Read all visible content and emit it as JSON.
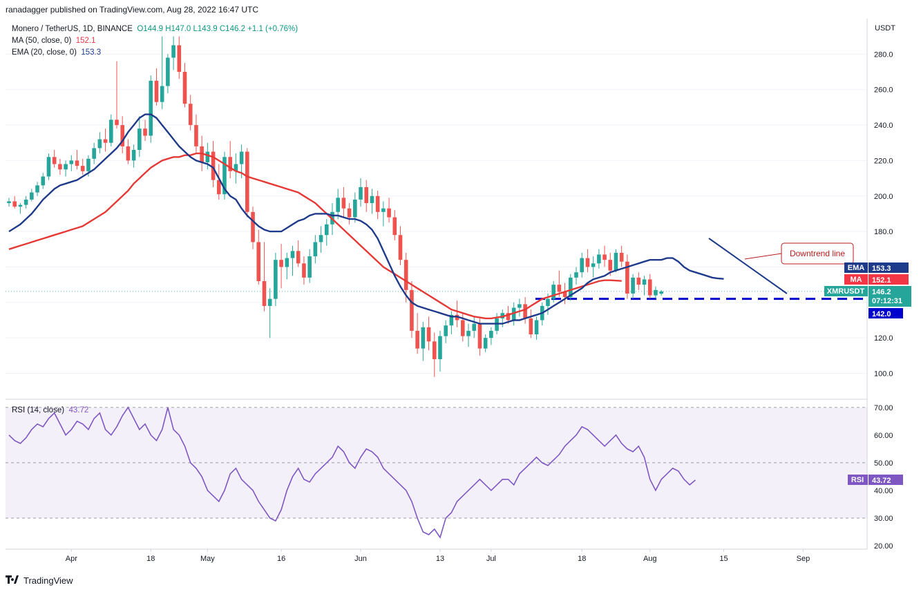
{
  "header": {
    "publisher": "ranadagger published on TradingView.com, Aug 28, 2022 16:47 UTC"
  },
  "legend": {
    "symbol": "Monero / TetherUS, 1D, BINANCE",
    "ohlc": "O144.9  H147.0  L143.9  C146.2  +1.1 (+0.76%)",
    "ma_label": "MA (50, close, 0)",
    "ma_value": "152.1",
    "ema_label": "EMA (20, close, 0)",
    "ema_value": "153.3"
  },
  "rsi_legend": {
    "label": "RSI (14, close)",
    "value": "43.72"
  },
  "price_axis": {
    "unit": "USDT"
  },
  "annotation": {
    "downtrend": "Downtrend line"
  },
  "tags": {
    "ema": {
      "name": "EMA",
      "value": "153.3",
      "color": "#1e3a8a"
    },
    "ma": {
      "name": "MA",
      "value": "152.1",
      "color": "#f23645"
    },
    "symbol": {
      "name": "XMRUSDT",
      "value": "146.2",
      "countdown": "07:12:31",
      "color": "#26a69a"
    },
    "support": {
      "value": "142.0",
      "color": "#0000cc"
    },
    "rsi": {
      "name": "RSI",
      "value": "43.72",
      "color": "#7e57c2"
    }
  },
  "footer": {
    "brand": "TradingView",
    "logo": "tradingview-logo"
  },
  "colors": {
    "up": "#26a69a",
    "down": "#ef5350",
    "ema": "#1e3a8a",
    "ma": "#e53935",
    "rsi": "#7e57c2"
  },
  "chart_data": [
    {
      "type": "candlestick",
      "title": "Monero / TetherUS, 1D, BINANCE",
      "x_ticks": [
        "Apr",
        "18",
        "May",
        "16",
        "Jun",
        "13",
        "Jul",
        "18",
        "Aug",
        "15",
        "Sep"
      ],
      "y_ticks": [
        100.0,
        120.0,
        140.0,
        160.0,
        180.0,
        200.0,
        220.0,
        240.0,
        260.0,
        280.0
      ],
      "ylim": [
        93,
        295
      ],
      "levels": {
        "support": 142.0,
        "last": 146.2
      },
      "ema_20": [
        180,
        182,
        184,
        187,
        190,
        194,
        198,
        201,
        204,
        206,
        207,
        208,
        209,
        211,
        213,
        215,
        218,
        221,
        224,
        227,
        231,
        236,
        240,
        244,
        246,
        246,
        244,
        240,
        236,
        232,
        228,
        225,
        222,
        220,
        219,
        218,
        216,
        210,
        204,
        200,
        198,
        193,
        189,
        186,
        183,
        181,
        180,
        180,
        180,
        182,
        184,
        186,
        187,
        189,
        190,
        190,
        190,
        189,
        189,
        188,
        187,
        187,
        186,
        184,
        181,
        176,
        169,
        162,
        155,
        149,
        144,
        140,
        138,
        137,
        136,
        135,
        134,
        133,
        132,
        132,
        131,
        130,
        129,
        128,
        128,
        128,
        128,
        128,
        129,
        130,
        130,
        131,
        132,
        133,
        134,
        136,
        138,
        140,
        142,
        144,
        146,
        148,
        151,
        153,
        154,
        155,
        157,
        158,
        159,
        160,
        161,
        162,
        163,
        164,
        164,
        164,
        165,
        165,
        163,
        160,
        158,
        157,
        156,
        155,
        154,
        153.5,
        153.3
      ],
      "ma_50": [
        170,
        171,
        172,
        173,
        174,
        175,
        176,
        177,
        178,
        179,
        180,
        181,
        182,
        183,
        185,
        187,
        189,
        191,
        194,
        197,
        200,
        203,
        207,
        210,
        213,
        216,
        218,
        220,
        221,
        222,
        222,
        223,
        223,
        224,
        224,
        223,
        222,
        220,
        218,
        216,
        214,
        213,
        211,
        210,
        209,
        208,
        207,
        206,
        205,
        204,
        203,
        202,
        200,
        198,
        196,
        193,
        190,
        187,
        184,
        181,
        178,
        175,
        172,
        169,
        166,
        163,
        160,
        158,
        156,
        154,
        152,
        150,
        148,
        146,
        144,
        142,
        140,
        138,
        136,
        135,
        134,
        133,
        132,
        131.5,
        131,
        131,
        131.5,
        132,
        133,
        134,
        135,
        136,
        138,
        140,
        142,
        143,
        144,
        145,
        146,
        147,
        148,
        149,
        150,
        151,
        152,
        152.5,
        152.5,
        152.3,
        152.1
      ],
      "candles": [
        [
          196,
          199,
          194,
          197
        ],
        [
          197,
          200,
          193,
          194
        ],
        [
          194,
          196,
          190,
          195
        ],
        [
          195,
          200,
          193,
          198
        ],
        [
          198,
          204,
          197,
          202
        ],
        [
          202,
          208,
          200,
          206
        ],
        [
          206,
          213,
          204,
          211
        ],
        [
          211,
          224,
          209,
          222
        ],
        [
          222,
          226,
          216,
          218
        ],
        [
          218,
          221,
          212,
          215
        ],
        [
          215,
          220,
          211,
          218
        ],
        [
          218,
          223,
          214,
          220
        ],
        [
          220,
          226,
          215,
          217
        ],
        [
          217,
          221,
          212,
          214
        ],
        [
          214,
          223,
          211,
          221
        ],
        [
          221,
          230,
          218,
          227
        ],
        [
          227,
          236,
          224,
          232
        ],
        [
          232,
          238,
          225,
          230
        ],
        [
          230,
          246,
          228,
          243
        ],
        [
          243,
          276,
          238,
          240
        ],
        [
          240,
          245,
          224,
          228
        ],
        [
          228,
          232,
          218,
          220
        ],
        [
          220,
          229,
          216,
          226
        ],
        [
          226,
          245,
          222,
          238
        ],
        [
          238,
          243,
          231,
          234
        ],
        [
          234,
          268,
          230,
          265
        ],
        [
          265,
          272,
          251,
          253
        ],
        [
          253,
          290,
          249,
          262
        ],
        [
          262,
          280,
          258,
          278
        ],
        [
          278,
          290,
          271,
          285
        ],
        [
          285,
          290,
          266,
          270
        ],
        [
          270,
          275,
          250,
          252
        ],
        [
          252,
          257,
          237,
          240
        ],
        [
          240,
          246,
          224,
          228
        ],
        [
          228,
          234,
          214,
          219
        ],
        [
          219,
          230,
          215,
          225
        ],
        [
          225,
          231,
          205,
          209
        ],
        [
          209,
          218,
          198,
          201
        ],
        [
          201,
          225,
          198,
          222
        ],
        [
          222,
          231,
          210,
          214
        ],
        [
          214,
          224,
          207,
          218
        ],
        [
          218,
          229,
          210,
          225
        ],
        [
          225,
          227,
          188,
          191
        ],
        [
          191,
          194,
          170,
          174
        ],
        [
          174,
          181,
          150,
          152
        ],
        [
          152,
          174,
          135,
          138
        ],
        [
          138,
          148,
          120,
          142
        ],
        [
          142,
          168,
          138,
          164
        ],
        [
          164,
          173,
          148,
          160
        ],
        [
          160,
          168,
          153,
          165
        ],
        [
          165,
          172,
          155,
          169
        ],
        [
          169,
          175,
          160,
          162
        ],
        [
          162,
          166,
          150,
          154
        ],
        [
          154,
          170,
          151,
          166
        ],
        [
          166,
          178,
          162,
          174
        ],
        [
          174,
          183,
          168,
          178
        ],
        [
          178,
          187,
          172,
          184
        ],
        [
          184,
          196,
          178,
          191
        ],
        [
          191,
          204,
          187,
          199
        ],
        [
          199,
          205,
          188,
          193
        ],
        [
          193,
          196,
          184,
          188
        ],
        [
          188,
          202,
          185,
          198
        ],
        [
          198,
          210,
          194,
          205
        ],
        [
          205,
          209,
          191,
          196
        ],
        [
          196,
          204,
          190,
          200
        ],
        [
          200,
          203,
          187,
          191
        ],
        [
          191,
          197,
          183,
          193
        ],
        [
          193,
          199,
          185,
          188
        ],
        [
          188,
          192,
          175,
          178
        ],
        [
          178,
          183,
          161,
          164
        ],
        [
          164,
          168,
          140,
          147
        ],
        [
          147,
          152,
          120,
          124
        ],
        [
          124,
          134,
          111,
          114
        ],
        [
          114,
          129,
          107,
          126
        ],
        [
          126,
          132,
          113,
          118
        ],
        [
          118,
          123,
          98,
          108
        ],
        [
          108,
          124,
          101,
          121
        ],
        [
          121,
          130,
          117,
          127
        ],
        [
          127,
          135,
          122,
          133
        ],
        [
          133,
          141,
          126,
          130
        ],
        [
          130,
          134,
          118,
          121
        ],
        [
          121,
          128,
          115,
          124
        ],
        [
          124,
          132,
          120,
          128
        ],
        [
          128,
          131,
          110,
          114
        ],
        [
          114,
          122,
          112,
          120
        ],
        [
          120,
          126,
          116,
          124
        ],
        [
          124,
          134,
          122,
          131
        ],
        [
          131,
          136,
          126,
          134
        ],
        [
          134,
          138,
          128,
          130
        ],
        [
          130,
          140,
          127,
          137
        ],
        [
          137,
          142,
          132,
          139
        ],
        [
          139,
          143,
          128,
          131
        ],
        [
          131,
          136,
          120,
          122
        ],
        [
          122,
          132,
          119,
          130
        ],
        [
          130,
          140,
          127,
          138
        ],
        [
          138,
          145,
          133,
          142
        ],
        [
          142,
          152,
          140,
          150
        ],
        [
          150,
          158,
          143,
          146
        ],
        [
          146,
          151,
          139,
          143
        ],
        [
          143,
          156,
          141,
          154
        ],
        [
          154,
          160,
          150,
          157
        ],
        [
          157,
          168,
          154,
          165
        ],
        [
          165,
          170,
          157,
          160
        ],
        [
          160,
          166,
          154,
          162
        ],
        [
          162,
          170,
          159,
          167
        ],
        [
          167,
          172,
          160,
          164
        ],
        [
          164,
          168,
          155,
          158
        ],
        [
          158,
          170,
          157,
          168
        ],
        [
          168,
          172,
          160,
          163
        ],
        [
          163,
          167,
          142,
          145
        ],
        [
          145,
          156,
          142,
          154
        ],
        [
          154,
          157,
          147,
          150
        ],
        [
          150,
          155,
          144,
          153
        ],
        [
          153,
          156,
          142,
          144
        ],
        [
          144,
          149,
          142,
          147
        ],
        [
          144.9,
          147.0,
          143.9,
          146.2
        ]
      ]
    },
    {
      "type": "line",
      "title": "RSI (14, close)",
      "y_ticks": [
        20.0,
        30.0,
        40.0,
        50.0,
        60.0,
        70.0
      ],
      "ylim": [
        18,
        72
      ],
      "bands": {
        "upper": 70,
        "middle": 50,
        "lower": 30
      },
      "values": [
        60,
        58,
        57,
        59,
        62,
        64,
        63,
        66,
        68,
        64,
        60,
        62,
        65,
        64,
        62,
        66,
        68,
        62,
        60,
        63,
        67,
        70,
        66,
        62,
        64,
        60,
        58,
        62,
        70,
        62,
        60,
        56,
        50,
        48,
        45,
        40,
        38,
        36,
        40,
        46,
        48,
        44,
        42,
        40,
        36,
        33,
        30,
        29,
        33,
        40,
        45,
        48,
        44,
        43,
        46,
        48,
        50,
        52,
        56,
        54,
        50,
        48,
        52,
        55,
        54,
        52,
        48,
        46,
        44,
        42,
        40,
        36,
        30,
        25,
        24,
        26,
        23,
        30,
        32,
        36,
        38,
        40,
        42,
        44,
        42,
        40,
        42,
        44,
        44,
        42,
        46,
        48,
        50,
        52,
        50,
        49,
        51,
        53,
        56,
        58,
        60,
        63,
        62,
        60,
        58,
        56,
        58,
        60,
        57,
        55,
        54,
        56,
        52,
        44,
        40,
        44,
        46,
        48,
        47,
        44,
        42,
        43.72
      ]
    }
  ]
}
